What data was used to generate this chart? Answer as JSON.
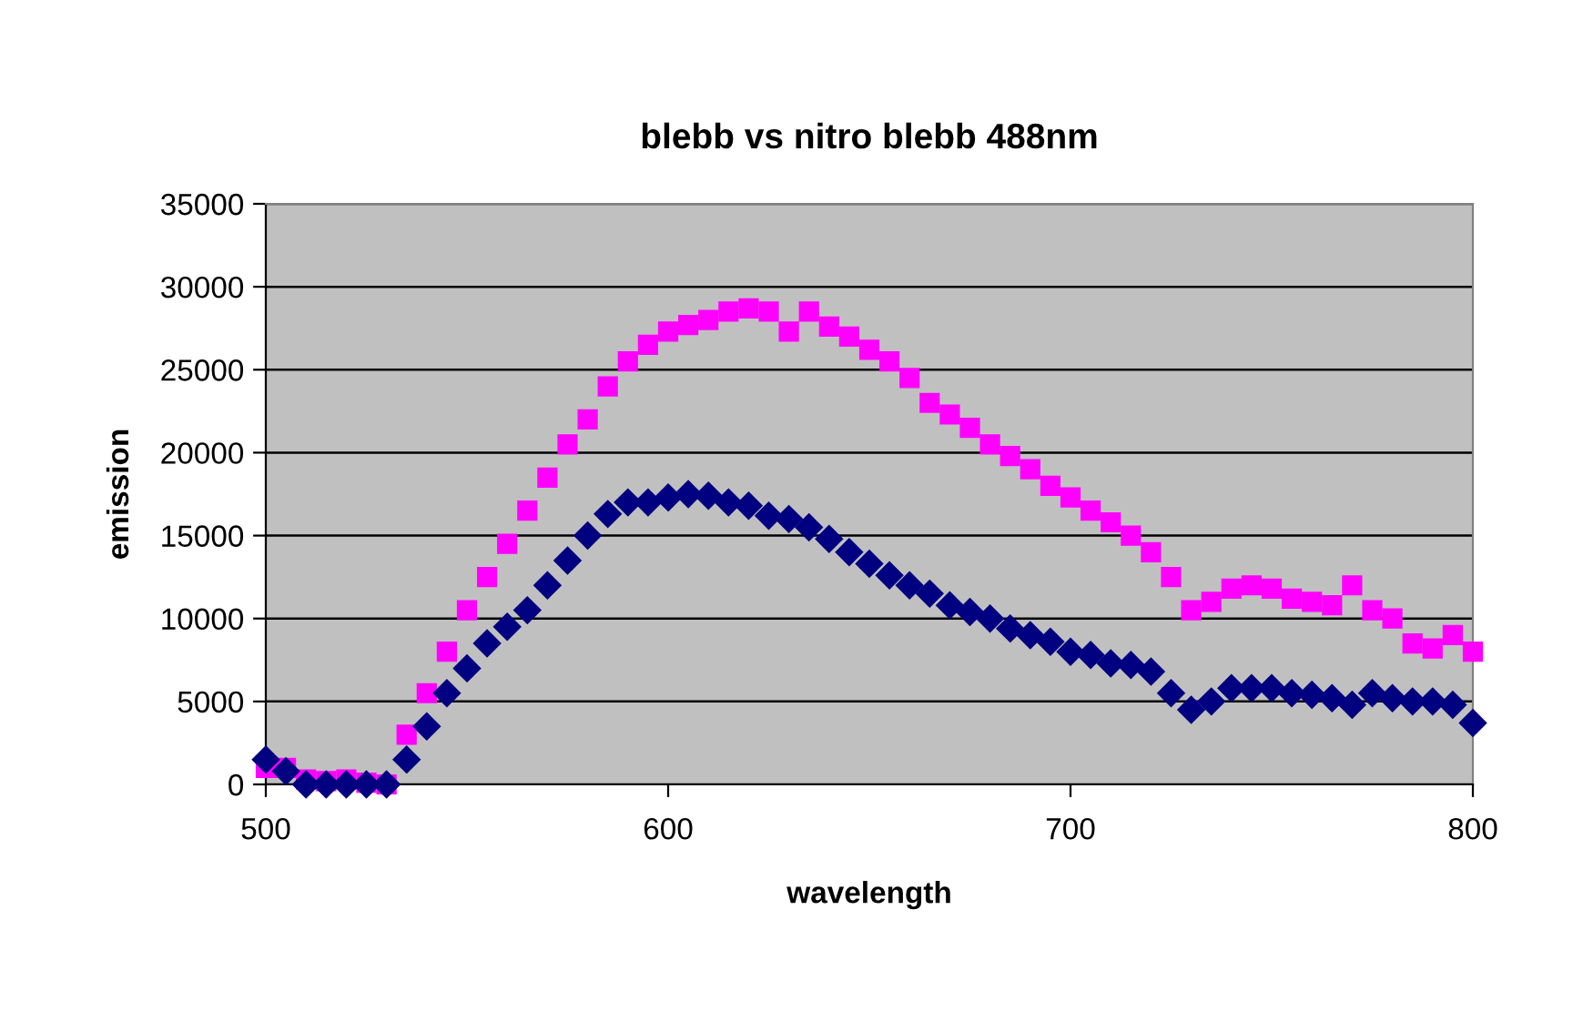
{
  "chart_data": {
    "type": "scatter",
    "title": "blebb vs nitro blebb 488nm",
    "xlabel": "wavelength",
    "ylabel": "emission",
    "x": [
      500,
      505,
      510,
      515,
      520,
      525,
      530,
      535,
      540,
      545,
      550,
      555,
      560,
      565,
      570,
      575,
      580,
      585,
      590,
      595,
      600,
      605,
      610,
      615,
      620,
      625,
      630,
      635,
      640,
      645,
      650,
      655,
      660,
      665,
      670,
      675,
      680,
      685,
      690,
      695,
      700,
      705,
      710,
      715,
      720,
      725,
      730,
      735,
      740,
      745,
      750,
      755,
      760,
      765,
      770,
      775,
      780,
      785,
      790,
      795,
      800
    ],
    "series": [
      {
        "color": "#ff00ff",
        "marker": "square",
        "values": [
          1000,
          1000,
          300,
          200,
          300,
          100,
          0,
          3000,
          5500,
          8000,
          10500,
          12500,
          14500,
          16500,
          18500,
          20500,
          22000,
          24000,
          25500,
          26500,
          27300,
          27700,
          28000,
          28500,
          28700,
          28500,
          27300,
          28500,
          27600,
          27000,
          26200,
          25500,
          24500,
          23000,
          22300,
          21500,
          20500,
          19800,
          19000,
          18000,
          17300,
          16500,
          15800,
          15000,
          14000,
          12500,
          10500,
          11000,
          11800,
          12000,
          11800,
          11200,
          11000,
          10800,
          12000,
          10500,
          10000,
          8500,
          8200,
          9000,
          8000
        ]
      },
      {
        "color": "#000080",
        "marker": "diamond",
        "values": [
          1500,
          800,
          0,
          0,
          0,
          0,
          0,
          1500,
          3500,
          5500,
          7000,
          8500,
          9500,
          10500,
          12000,
          13500,
          15000,
          16300,
          17000,
          17000,
          17300,
          17500,
          17400,
          17000,
          16800,
          16200,
          16000,
          15500,
          14800,
          14000,
          13300,
          12600,
          12000,
          11500,
          10800,
          10400,
          10000,
          9400,
          9000,
          8600,
          8000,
          7800,
          7300,
          7200,
          6800,
          5500,
          4500,
          5000,
          5800,
          5800,
          5800,
          5500,
          5400,
          5200,
          4800,
          5500,
          5200,
          5000,
          5000,
          4800,
          3700
        ]
      }
    ],
    "xlim": [
      500,
      800
    ],
    "xticks": [
      500,
      600,
      700,
      800
    ],
    "ylim": [
      0,
      35000
    ],
    "yticks": [
      0,
      5000,
      10000,
      15000,
      20000,
      25000,
      30000,
      35000
    ],
    "grid": "y",
    "legend": false
  }
}
